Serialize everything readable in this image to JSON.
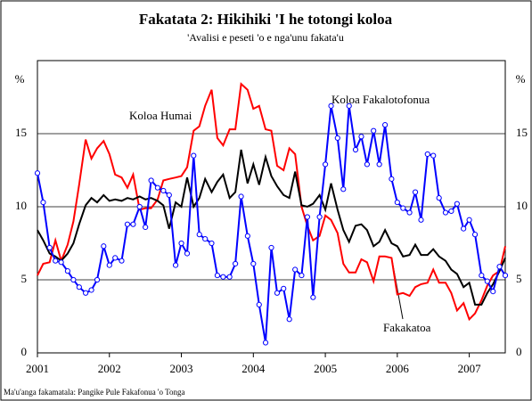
{
  "chart_data": {
    "type": "line",
    "title": "Fakatata 2: Hikihiki 'I he totongi koloa",
    "subtitle": "'Avalisi e peseti 'o e nga'unu fakata'u",
    "source": "Ma'u'anga fakamatala: Pangike Pule Fakafonua 'o Tonga",
    "y_label": "%",
    "y2_label": "%",
    "x": [
      2001,
      2001.08,
      2001.17,
      2001.25,
      2001.33,
      2001.42,
      2001.5,
      2001.58,
      2001.67,
      2001.75,
      2001.83,
      2001.92,
      2002,
      2002.08,
      2002.17,
      2002.25,
      2002.33,
      2002.42,
      2002.5,
      2002.58,
      2002.67,
      2002.75,
      2002.83,
      2002.92,
      2003,
      2003.08,
      2003.17,
      2003.25,
      2003.33,
      2003.42,
      2003.5,
      2003.58,
      2003.67,
      2003.75,
      2003.83,
      2003.92,
      2004,
      2004.08,
      2004.17,
      2004.25,
      2004.33,
      2004.42,
      2004.5,
      2004.58,
      2004.67,
      2004.75,
      2004.83,
      2004.92,
      2005,
      2005.08,
      2005.17,
      2005.25,
      2005.33,
      2005.42,
      2005.5,
      2005.58,
      2005.67,
      2005.75,
      2005.83,
      2005.92,
      2006,
      2006.08,
      2006.17,
      2006.25,
      2006.33,
      2006.42,
      2006.5,
      2006.58,
      2006.67,
      2006.75,
      2006.83,
      2006.92,
      2007,
      2007.08,
      2007.17,
      2007.25,
      2007.33,
      2007.42,
      2007.5
    ],
    "xlim": [
      2001,
      2007.5
    ],
    "xticks": [
      2001,
      2002,
      2003,
      2004,
      2005,
      2006,
      2007
    ],
    "ylim": [
      0,
      20
    ],
    "yticks": [
      0,
      5,
      10,
      15
    ],
    "y2lim": [
      0,
      20
    ],
    "y2ticks": [
      0,
      5,
      10,
      15
    ],
    "grid": true,
    "series": [
      {
        "name": "Koloa Humai",
        "color": "#ff0000",
        "marker": false,
        "values": [
          5.3,
          6.1,
          6.2,
          7.7,
          6.3,
          7.4,
          9.0,
          11.5,
          14.6,
          13.3,
          14.0,
          14.5,
          13.6,
          12.2,
          12.0,
          11.3,
          12.2,
          9.8,
          9.9,
          9.9,
          10.5,
          11.8,
          11.9,
          12.0,
          12.1,
          12.7,
          15.2,
          15.5,
          16.9,
          18.0,
          14.7,
          14.2,
          15.3,
          15.3,
          18.4,
          18.0,
          16.7,
          16.9,
          15.3,
          15.2,
          12.8,
          12.5,
          14.0,
          13.6,
          10.0,
          8.7,
          7.7,
          8.0,
          9.4,
          9.1,
          8.2,
          6.1,
          5.5,
          5.5,
          6.4,
          6.2,
          4.9,
          6.6,
          6.6,
          6.5,
          4.0,
          4.1,
          3.9,
          4.5,
          4.7,
          4.8,
          5.7,
          4.8,
          4.8,
          4.1,
          2.9,
          3.4,
          2.3,
          2.7,
          3.6,
          4.6,
          5.3,
          5.6,
          7.3
        ]
      },
      {
        "name": "Fakakatoa",
        "color": "#000000",
        "marker": false,
        "values": [
          8.4,
          7.7,
          6.8,
          6.6,
          6.3,
          6.8,
          7.5,
          8.8,
          10.1,
          10.6,
          10.3,
          10.8,
          10.4,
          10.5,
          10.4,
          10.6,
          10.5,
          10.7,
          10.5,
          10.6,
          10.4,
          10.1,
          8.5,
          10.3,
          10.0,
          12.0,
          10.0,
          10.6,
          11.9,
          11.0,
          11.7,
          12.2,
          10.6,
          11.0,
          13.9,
          11.6,
          12.9,
          11.5,
          13.4,
          12.1,
          11.4,
          10.8,
          10.6,
          12.4,
          10.1,
          10.0,
          10.2,
          10.8,
          9.8,
          11.6,
          9.8,
          8.4,
          7.6,
          8.7,
          8.8,
          8.4,
          7.3,
          7.6,
          8.4,
          7.5,
          7.3,
          6.6,
          6.7,
          7.4,
          6.7,
          6.7,
          7.1,
          6.6,
          6.3,
          5.7,
          5.4,
          4.5,
          4.8,
          3.3,
          3.3,
          4.1,
          4.7,
          5.6,
          6.5
        ]
      },
      {
        "name": "Koloa Fakalotofonua",
        "color": "#0000ff",
        "marker": true,
        "values": [
          12.3,
          10.3,
          7.2,
          6.3,
          6.2,
          5.6,
          5.0,
          4.5,
          4.1,
          4.3,
          5.0,
          7.3,
          6.0,
          6.5,
          6.3,
          8.8,
          8.8,
          10.0,
          8.6,
          11.8,
          11.3,
          11.1,
          10.8,
          6.0,
          7.5,
          6.8,
          13.5,
          8.1,
          7.8,
          7.5,
          5.3,
          5.2,
          5.2,
          6.1,
          10.7,
          8.0,
          6.1,
          3.3,
          0.7,
          7.2,
          4.1,
          4.4,
          2.3,
          5.7,
          5.3,
          9.3,
          3.8,
          9.3,
          12.9,
          16.9,
          14.7,
          11.2,
          16.9,
          13.9,
          14.8,
          12.9,
          15.2,
          12.9,
          15.6,
          11.9,
          10.3,
          9.9,
          9.6,
          11.0,
          9.1,
          13.6,
          13.5,
          10.6,
          9.6,
          9.7,
          10.2,
          8.5,
          9.1,
          8.1,
          5.3,
          4.9,
          4.2,
          5.9,
          5.3
        ]
      }
    ]
  }
}
